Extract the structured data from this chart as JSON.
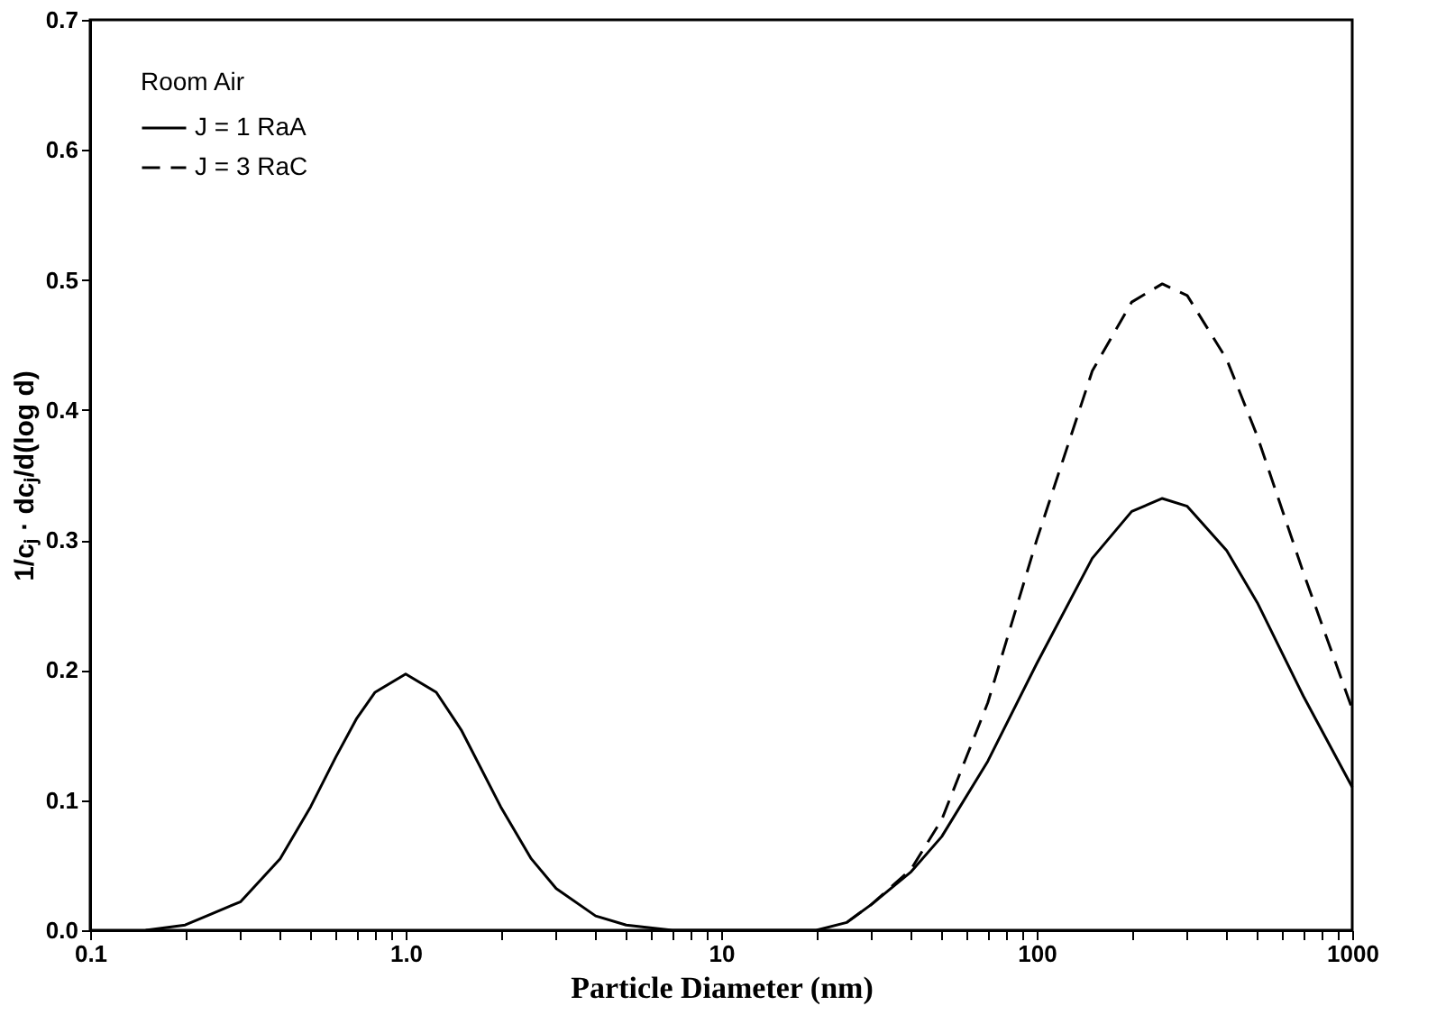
{
  "chart_data": {
    "type": "line",
    "xlabel": "Particle Diameter (nm)",
    "ylabel": "1/cⱼ · dcⱼ/d(log d)",
    "legend_title": "Room Air",
    "legend": "top left",
    "log": "x",
    "grid": false,
    "marker": "none",
    "xlim": [
      0.1,
      1000
    ],
    "ylim": [
      0,
      0.7
    ],
    "xticks": [
      0.1,
      {
        "value": 0.2,
        "label": null
      },
      {
        "value": 0.3,
        "label": null
      },
      {
        "value": 0.4,
        "label": null
      },
      {
        "value": 0.5,
        "label": null
      },
      {
        "value": 0.6,
        "label": null
      },
      {
        "value": 0.7,
        "label": null
      },
      {
        "value": 0.8,
        "label": null
      },
      {
        "value": 0.9,
        "label": null
      },
      {
        "value": 1,
        "label": "1.0"
      },
      {
        "value": 2,
        "label": null
      },
      {
        "value": 3,
        "label": null
      },
      {
        "value": 4,
        "label": null
      },
      {
        "value": 5,
        "label": null
      },
      {
        "value": 6,
        "label": null
      },
      {
        "value": 7,
        "label": null
      },
      {
        "value": 8,
        "label": null
      },
      {
        "value": 9,
        "label": null
      },
      10,
      {
        "value": 20,
        "label": null
      },
      {
        "value": 30,
        "label": null
      },
      {
        "value": 40,
        "label": null
      },
      {
        "value": 50,
        "label": null
      },
      {
        "value": 60,
        "label": null
      },
      {
        "value": 70,
        "label": null
      },
      {
        "value": 80,
        "label": null
      },
      {
        "value": 90,
        "label": null
      },
      100,
      {
        "value": 200,
        "label": null
      },
      {
        "value": 300,
        "label": null
      },
      {
        "value": 400,
        "label": null
      },
      {
        "value": 500,
        "label": null
      },
      {
        "value": 600,
        "label": null
      },
      {
        "value": 700,
        "label": null
      },
      {
        "value": 800,
        "label": null
      },
      {
        "value": 900,
        "label": null
      },
      1000
    ],
    "yticks": [
      {
        "value": 0,
        "label": "0.0"
      },
      0.1,
      0.2,
      0.3,
      0.4,
      0.5,
      0.6,
      0.7
    ],
    "series": [
      {
        "name": "J = 1  RaA",
        "color": "#000000",
        "line_style": "solid",
        "x": [
          0.15,
          0.2,
          0.3,
          0.4,
          0.5,
          0.6,
          0.7,
          0.8,
          1,
          1.25,
          1.5,
          2,
          2.5,
          3,
          4,
          5,
          7,
          10,
          20,
          25,
          30,
          40,
          50,
          70,
          100,
          150,
          200,
          250,
          300,
          400,
          500,
          700,
          1000
        ],
        "values": [
          0.0,
          0.004,
          0.022,
          0.055,
          0.095,
          0.133,
          0.163,
          0.183,
          0.197,
          0.183,
          0.154,
          0.095,
          0.055,
          0.032,
          0.011,
          0.004,
          0.0,
          0.0,
          0.0,
          0.006,
          0.02,
          0.045,
          0.072,
          0.13,
          0.205,
          0.286,
          0.322,
          0.332,
          0.326,
          0.292,
          0.252,
          0.18,
          0.11
        ]
      },
      {
        "name": "J = 3  RaC",
        "color": "#000000",
        "line_style": "dashed",
        "x": [
          25,
          30,
          40,
          50,
          70,
          100,
          150,
          200,
          250,
          300,
          400,
          500,
          700,
          1000
        ],
        "values": [
          0.006,
          0.02,
          0.047,
          0.085,
          0.175,
          0.3,
          0.43,
          0.483,
          0.497,
          0.488,
          0.439,
          0.38,
          0.275,
          0.17
        ]
      }
    ]
  }
}
